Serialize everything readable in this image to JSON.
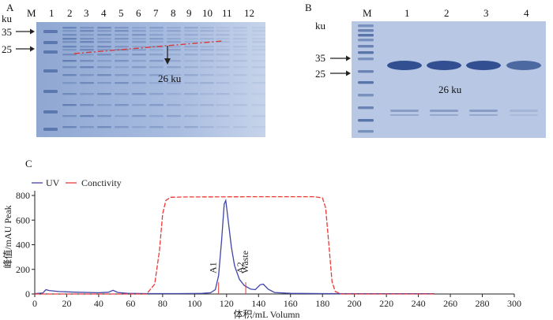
{
  "panels": {
    "a": {
      "label": "A",
      "unit": "ku",
      "lanes": [
        "M",
        "1",
        "2",
        "3",
        "4",
        "5",
        "6",
        "7",
        "8",
        "9",
        "10",
        "11",
        "12"
      ],
      "markers": [
        "35",
        "25"
      ],
      "annotation": "26 ku"
    },
    "b": {
      "label": "B",
      "unit": "ku",
      "lanes": [
        "M",
        "1",
        "2",
        "3",
        "4"
      ],
      "markers": [
        "35",
        "25"
      ],
      "annotation": "26 ku"
    },
    "c": {
      "label": "C"
    }
  },
  "colors": {
    "gel_bg": "#a9bcdd",
    "band_dark": "#2f4f8f",
    "uv": "#3f45a8",
    "conductivity": "#e83a3a",
    "dashline": "#d83a3a"
  },
  "chart_data": {
    "type": "line",
    "title": "",
    "xlabel": "体积/mL  Volumn",
    "ylabel": "峰值/mAU  Peak",
    "xlim": [
      0,
      300
    ],
    "ylim": [
      0,
      800
    ],
    "xticks": [
      "0",
      "20",
      "40",
      "60",
      "80",
      "100",
      "120",
      "140",
      "160",
      "180",
      "200",
      "220",
      "240",
      "260",
      "280",
      "300"
    ],
    "yticks": [
      "0",
      "200",
      "400",
      "600",
      "800"
    ],
    "legend": [
      "UV",
      "Conctivity"
    ],
    "series": [
      {
        "name": "UV",
        "points": [
          [
            0,
            3
          ],
          [
            5,
            8
          ],
          [
            7,
            35
          ],
          [
            9,
            28
          ],
          [
            15,
            20
          ],
          [
            25,
            15
          ],
          [
            40,
            10
          ],
          [
            46,
            14
          ],
          [
            49,
            30
          ],
          [
            52,
            12
          ],
          [
            58,
            5
          ],
          [
            70,
            3
          ],
          [
            90,
            3
          ],
          [
            105,
            5
          ],
          [
            110,
            10
          ],
          [
            113,
            35
          ],
          [
            115,
            150
          ],
          [
            117,
            450
          ],
          [
            118.5,
            730
          ],
          [
            119.5,
            760
          ],
          [
            121,
            600
          ],
          [
            123,
            380
          ],
          [
            125,
            230
          ],
          [
            128,
            120
          ],
          [
            131,
            70
          ],
          [
            135,
            40
          ],
          [
            138,
            35
          ],
          [
            141,
            75
          ],
          [
            143,
            80
          ],
          [
            146,
            40
          ],
          [
            150,
            12
          ],
          [
            160,
            5
          ],
          [
            180,
            3
          ],
          [
            220,
            2
          ],
          [
            250,
            2
          ]
        ]
      },
      {
        "name": "Conctivity",
        "points": [
          [
            0,
            0
          ],
          [
            60,
            0
          ],
          [
            70,
            0
          ],
          [
            75,
            80
          ],
          [
            78,
            350
          ],
          [
            80,
            650
          ],
          [
            82,
            760
          ],
          [
            85,
            785
          ],
          [
            95,
            788
          ],
          [
            140,
            790
          ],
          [
            175,
            790
          ],
          [
            180,
            780
          ],
          [
            182,
            700
          ],
          [
            184,
            400
          ],
          [
            186,
            100
          ],
          [
            188,
            20
          ],
          [
            192,
            0
          ],
          [
            250,
            0
          ]
        ]
      }
    ],
    "annotations": [
      {
        "text": "A1",
        "x": 115
      },
      {
        "text": "A2",
        "x": 132
      },
      {
        "text": "Waste",
        "x": 135
      }
    ]
  }
}
